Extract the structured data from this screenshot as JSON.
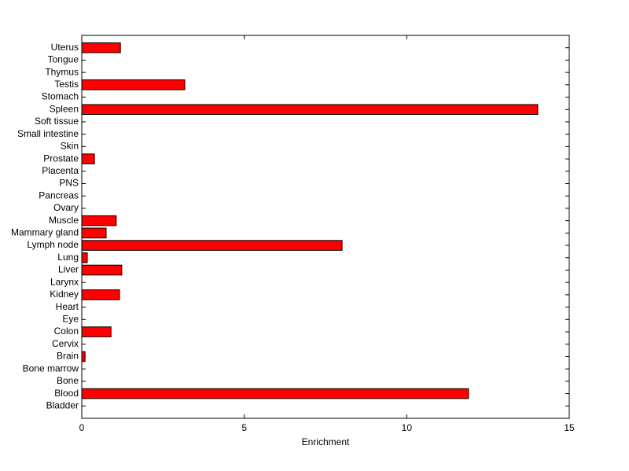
{
  "chart_data": {
    "type": "barh",
    "x_label": "Enrichment",
    "categories": [
      "Bladder",
      "Blood",
      "Bone",
      "Bone marrow",
      "Brain",
      "Cervix",
      "Colon",
      "Eye",
      "Heart",
      "Kidney",
      "Larynx",
      "Liver",
      "Lung",
      "Lymph node",
      "Mammary gland",
      "Muscle",
      "Ovary",
      "Pancreas",
      "PNS",
      "Placenta",
      "Prostate",
      "Skin",
      "Small intestine",
      "Soft tissue",
      "Spleen",
      "Stomach",
      "Testis",
      "Thymus",
      "Tongue",
      "Uterus"
    ],
    "values": [
      0,
      11.9,
      0,
      0,
      0.1,
      0,
      0.9,
      0,
      0,
      1.16,
      0,
      1.23,
      0.17,
      8.01,
      0.75,
      1.06,
      0,
      0,
      0,
      0,
      0.39,
      0,
      0,
      0,
      14.03,
      0,
      3.17,
      0,
      0,
      1.19
    ],
    "color": "#ff0000",
    "xlim": [
      0,
      15
    ],
    "xticks": [
      0,
      5,
      10,
      15
    ],
    "grid": false
  }
}
